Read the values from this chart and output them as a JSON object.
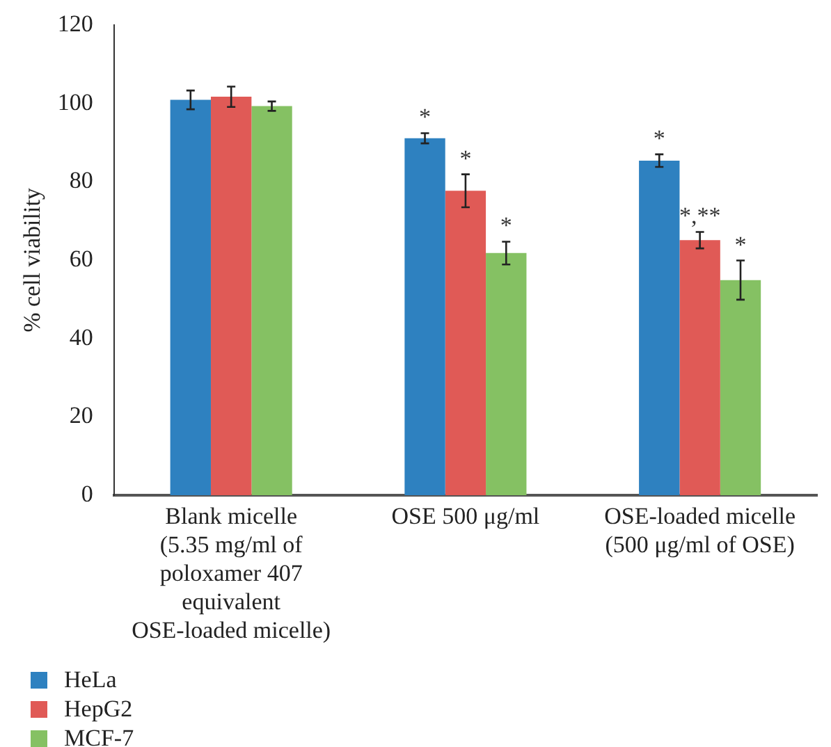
{
  "chart_data": {
    "type": "bar",
    "ylabel": "% cell viability",
    "categories": [
      "Blank micelle\n(5.35 mg/ml of\npoloxamer 407\nequivalent\nOSE-loaded micelle)",
      "OSE 500 μg/ml",
      "OSE-loaded micelle\n(500 μg/ml of OSE)"
    ],
    "series": [
      {
        "name": "HeLa",
        "color": "#2e81c0",
        "values": [
          100.9,
          91.1,
          85.4
        ],
        "errors": [
          2.4,
          1.3,
          1.6
        ],
        "value_labels": [
          null,
          "*",
          "*"
        ]
      },
      {
        "name": "HepG2",
        "color": "#e05a56",
        "values": [
          101.7,
          77.7,
          65.1
        ],
        "errors": [
          2.6,
          4.2,
          2.1
        ],
        "value_labels": [
          null,
          "*",
          "*,**"
        ]
      },
      {
        "name": "MCF-7",
        "color": "#85c163",
        "values": [
          99.3,
          61.8,
          54.9
        ],
        "errors": [
          1.2,
          2.9,
          5
        ],
        "value_labels": [
          null,
          "*",
          "*"
        ]
      }
    ],
    "ylim": [
      0,
      120
    ],
    "yticks": [
      0,
      20,
      40,
      60,
      80,
      100,
      120
    ],
    "grid": false,
    "legend": "bottom left"
  }
}
